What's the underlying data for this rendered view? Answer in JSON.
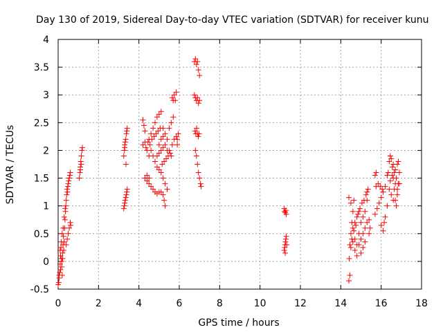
{
  "chart_data": {
    "type": "scatter",
    "title": "Day 130 of 2019, Sidereal Day-to-day VTEC variation (SDTVAR) for receiver kunu",
    "xlabel": "GPS time / hours",
    "ylabel": "SDTVAR / TECUs",
    "xlim": [
      0,
      18
    ],
    "ylim": [
      -0.5,
      4
    ],
    "xticks": [
      0,
      2,
      4,
      6,
      8,
      10,
      12,
      14,
      16,
      18
    ],
    "yticks": [
      -0.5,
      0,
      0.5,
      1,
      1.5,
      2,
      2.5,
      3,
      3.5,
      4
    ],
    "ytick_labels": [
      "-0.5",
      "0",
      "0.5",
      "1",
      "1.5",
      "2",
      "2.5",
      "3",
      "3.5",
      "4"
    ],
    "grid": true,
    "marker": "plus",
    "color": "#ff0000",
    "series": [
      {
        "name": "SDTVAR",
        "points": [
          [
            0.0,
            -0.42
          ],
          [
            0.03,
            -0.38
          ],
          [
            0.05,
            -0.3
          ],
          [
            0.08,
            -0.2
          ],
          [
            0.1,
            -0.05
          ],
          [
            0.12,
            0.1
          ],
          [
            0.14,
            0.25
          ],
          [
            0.16,
            0.05
          ],
          [
            0.18,
            -0.1
          ],
          [
            0.2,
            -0.25
          ],
          [
            0.22,
            0.15
          ],
          [
            0.24,
            0.3
          ],
          [
            0.26,
            0.45
          ],
          [
            0.28,
            0.2
          ],
          [
            0.3,
            0.35
          ],
          [
            0.32,
            0.6
          ],
          [
            0.34,
            0.75
          ],
          [
            0.36,
            0.9
          ],
          [
            0.38,
            1.0
          ],
          [
            0.4,
            1.1
          ],
          [
            0.42,
            1.2
          ],
          [
            0.44,
            1.3
          ],
          [
            0.46,
            1.25
          ],
          [
            0.48,
            1.35
          ],
          [
            0.5,
            1.4
          ],
          [
            0.52,
            1.45
          ],
          [
            0.55,
            1.5
          ],
          [
            0.58,
            1.55
          ],
          [
            0.6,
            1.6
          ],
          [
            0.1,
            0.2
          ],
          [
            0.15,
            0.35
          ],
          [
            0.2,
            0.5
          ],
          [
            0.25,
            0.6
          ],
          [
            0.3,
            0.8
          ],
          [
            0.35,
            0.95
          ],
          [
            0.4,
            0.3
          ],
          [
            0.45,
            0.4
          ],
          [
            0.5,
            0.5
          ],
          [
            0.55,
            0.6
          ],
          [
            0.6,
            0.7
          ],
          [
            0.62,
            0.65
          ],
          [
            0.05,
            -0.25
          ],
          [
            0.12,
            -0.15
          ],
          [
            0.18,
            0.0
          ],
          [
            0.22,
            0.05
          ],
          [
            1.05,
            1.5
          ],
          [
            1.08,
            1.6
          ],
          [
            1.1,
            1.7
          ],
          [
            1.12,
            1.8
          ],
          [
            1.15,
            1.9
          ],
          [
            1.18,
            2.0
          ],
          [
            1.2,
            2.05
          ],
          [
            1.1,
            1.65
          ],
          [
            1.14,
            1.75
          ],
          [
            3.25,
            0.95
          ],
          [
            3.28,
            1.0
          ],
          [
            3.3,
            1.05
          ],
          [
            3.32,
            1.1
          ],
          [
            3.35,
            1.15
          ],
          [
            3.38,
            1.2
          ],
          [
            3.4,
            1.25
          ],
          [
            3.42,
            1.3
          ],
          [
            3.25,
            1.9
          ],
          [
            3.28,
            2.0
          ],
          [
            3.3,
            2.1
          ],
          [
            3.32,
            2.15
          ],
          [
            3.35,
            2.2
          ],
          [
            3.38,
            2.3
          ],
          [
            3.4,
            2.35
          ],
          [
            3.42,
            2.4
          ],
          [
            3.36,
            1.75
          ],
          [
            3.3,
            2.05
          ],
          [
            4.2,
            2.55
          ],
          [
            4.25,
            2.45
          ],
          [
            4.3,
            2.35
          ],
          [
            4.2,
            2.1
          ],
          [
            4.3,
            2.15
          ],
          [
            4.4,
            2.0
          ],
          [
            4.5,
            1.9
          ],
          [
            4.3,
            1.5
          ],
          [
            4.4,
            1.45
          ],
          [
            4.5,
            1.4
          ],
          [
            4.6,
            1.35
          ],
          [
            4.7,
            1.3
          ],
          [
            4.8,
            1.25
          ],
          [
            4.9,
            1.22
          ],
          [
            5.0,
            1.25
          ],
          [
            4.5,
            2.2
          ],
          [
            4.6,
            2.3
          ],
          [
            4.7,
            2.4
          ],
          [
            4.8,
            2.5
          ],
          [
            4.9,
            2.6
          ],
          [
            5.0,
            2.65
          ],
          [
            5.1,
            2.7
          ],
          [
            4.6,
            2.0
          ],
          [
            4.7,
            1.9
          ],
          [
            4.8,
            1.8
          ],
          [
            4.9,
            1.7
          ],
          [
            5.0,
            1.65
          ],
          [
            5.1,
            1.6
          ],
          [
            5.2,
            1.5
          ],
          [
            5.3,
            1.4
          ],
          [
            5.4,
            1.3
          ],
          [
            5.2,
            2.4
          ],
          [
            5.3,
            2.3
          ],
          [
            5.4,
            2.2
          ],
          [
            5.5,
            2.0
          ],
          [
            5.6,
            1.9
          ],
          [
            5.5,
            2.4
          ],
          [
            5.6,
            2.5
          ],
          [
            5.7,
            2.6
          ],
          [
            5.0,
            2.1
          ],
          [
            5.1,
            2.2
          ],
          [
            5.2,
            2.25
          ],
          [
            5.3,
            2.1
          ],
          [
            5.4,
            2.0
          ],
          [
            4.9,
            1.9
          ],
          [
            5.0,
            1.95
          ],
          [
            5.1,
            2.0
          ],
          [
            5.2,
            2.05
          ],
          [
            4.4,
            1.55
          ],
          [
            4.5,
            1.5
          ],
          [
            4.35,
            2.05
          ],
          [
            4.45,
            2.15
          ],
          [
            4.55,
            2.1
          ],
          [
            4.65,
            2.2
          ],
          [
            4.75,
            2.25
          ],
          [
            4.85,
            2.3
          ],
          [
            5.15,
            1.75
          ],
          [
            5.25,
            1.8
          ],
          [
            5.35,
            1.85
          ],
          [
            5.45,
            1.9
          ],
          [
            5.55,
            1.95
          ],
          [
            5.65,
            2.1
          ],
          [
            5.75,
            2.2
          ],
          [
            5.85,
            2.25
          ],
          [
            5.95,
            2.3
          ],
          [
            5.65,
            2.95
          ],
          [
            5.75,
            3.0
          ],
          [
            5.85,
            3.05
          ],
          [
            5.7,
            2.9
          ],
          [
            5.8,
            2.9
          ],
          [
            5.9,
            2.2
          ],
          [
            5.9,
            2.1
          ],
          [
            5.2,
            1.2
          ],
          [
            5.1,
            1.25
          ],
          [
            5.3,
            1.0
          ],
          [
            5.25,
            1.1
          ],
          [
            4.95,
            2.35
          ],
          [
            5.05,
            2.4
          ],
          [
            6.75,
            3.6
          ],
          [
            6.8,
            3.65
          ],
          [
            6.85,
            3.55
          ],
          [
            6.9,
            3.6
          ],
          [
            6.95,
            3.45
          ],
          [
            7.0,
            3.35
          ],
          [
            6.75,
            3.0
          ],
          [
            6.8,
            2.95
          ],
          [
            6.85,
            2.9
          ],
          [
            6.9,
            2.95
          ],
          [
            6.95,
            2.85
          ],
          [
            7.0,
            2.9
          ],
          [
            6.78,
            2.35
          ],
          [
            6.82,
            2.3
          ],
          [
            6.86,
            2.4
          ],
          [
            6.9,
            2.3
          ],
          [
            6.94,
            2.25
          ],
          [
            6.98,
            2.3
          ],
          [
            6.8,
            2.0
          ],
          [
            6.85,
            1.9
          ],
          [
            6.9,
            1.75
          ],
          [
            6.95,
            1.6
          ],
          [
            7.0,
            1.5
          ],
          [
            7.05,
            1.4
          ],
          [
            7.08,
            1.35
          ],
          [
            11.2,
            0.95
          ],
          [
            11.22,
            0.9
          ],
          [
            11.25,
            0.88
          ],
          [
            11.28,
            0.92
          ],
          [
            11.3,
            0.85
          ],
          [
            11.2,
            0.2
          ],
          [
            11.22,
            0.25
          ],
          [
            11.24,
            0.3
          ],
          [
            11.26,
            0.35
          ],
          [
            11.28,
            0.4
          ],
          [
            11.3,
            0.45
          ],
          [
            11.32,
            0.3
          ],
          [
            11.25,
            0.15
          ],
          [
            14.4,
            -0.35
          ],
          [
            14.45,
            -0.25
          ],
          [
            14.42,
            0.05
          ],
          [
            14.45,
            0.3
          ],
          [
            14.5,
            0.5
          ],
          [
            14.55,
            0.7
          ],
          [
            14.6,
            0.9
          ],
          [
            14.65,
            1.1
          ],
          [
            14.4,
            1.15
          ],
          [
            14.5,
            1.05
          ],
          [
            14.6,
            0.6
          ],
          [
            14.7,
            0.4
          ],
          [
            14.8,
            0.3
          ],
          [
            14.9,
            0.5
          ],
          [
            15.0,
            0.7
          ],
          [
            15.1,
            0.8
          ],
          [
            15.2,
            0.9
          ],
          [
            15.3,
            1.1
          ],
          [
            15.35,
            1.3
          ],
          [
            14.7,
            0.2
          ],
          [
            14.8,
            0.1
          ],
          [
            14.9,
            0.3
          ],
          [
            15.0,
            0.4
          ],
          [
            15.1,
            0.5
          ],
          [
            15.2,
            0.6
          ],
          [
            15.3,
            0.7
          ],
          [
            15.4,
            0.75
          ],
          [
            14.55,
            0.4
          ],
          [
            14.65,
            0.55
          ],
          [
            14.75,
            0.65
          ],
          [
            14.85,
            0.85
          ],
          [
            14.95,
            0.95
          ],
          [
            15.05,
            1.05
          ],
          [
            15.15,
            1.1
          ],
          [
            15.25,
            1.2
          ],
          [
            15.3,
            1.25
          ],
          [
            15.2,
            0.35
          ],
          [
            15.1,
            0.25
          ],
          [
            15.0,
            0.15
          ],
          [
            14.5,
            0.25
          ],
          [
            14.6,
            0.35
          ],
          [
            14.7,
            0.7
          ],
          [
            14.8,
            0.8
          ],
          [
            14.9,
            0.9
          ],
          [
            15.4,
            0.5
          ],
          [
            15.45,
            0.6
          ],
          [
            15.7,
            0.85
          ],
          [
            15.8,
            0.95
          ],
          [
            15.9,
            1.05
          ],
          [
            16.0,
            1.15
          ],
          [
            16.1,
            1.25
          ],
          [
            16.2,
            1.35
          ],
          [
            15.75,
            1.35
          ],
          [
            15.85,
            1.4
          ],
          [
            15.95,
            1.35
          ],
          [
            16.05,
            1.3
          ],
          [
            15.7,
            1.55
          ],
          [
            15.75,
            1.6
          ],
          [
            16.0,
            0.65
          ],
          [
            16.1,
            0.55
          ],
          [
            16.15,
            0.7
          ],
          [
            16.2,
            0.8
          ],
          [
            16.3,
            1.0
          ],
          [
            16.35,
            1.6
          ],
          [
            16.4,
            1.8
          ],
          [
            16.45,
            1.9
          ],
          [
            16.5,
            1.85
          ],
          [
            16.55,
            1.7
          ],
          [
            16.6,
            1.5
          ],
          [
            16.65,
            1.3
          ],
          [
            16.7,
            1.1
          ],
          [
            16.75,
            1.0
          ],
          [
            16.8,
            1.2
          ],
          [
            16.85,
            1.4
          ],
          [
            16.9,
            1.6
          ],
          [
            16.6,
            1.75
          ],
          [
            16.7,
            1.65
          ],
          [
            16.8,
            1.75
          ],
          [
            16.85,
            1.8
          ],
          [
            16.4,
            1.3
          ],
          [
            16.5,
            1.2
          ],
          [
            16.6,
            1.1
          ],
          [
            16.7,
            1.4
          ],
          [
            16.8,
            1.3
          ],
          [
            16.9,
            1.4
          ],
          [
            16.3,
            1.55
          ],
          [
            16.45,
            1.45
          ],
          [
            16.55,
            1.55
          ],
          [
            16.65,
            1.6
          ],
          [
            16.75,
            1.5
          ]
        ]
      }
    ]
  }
}
